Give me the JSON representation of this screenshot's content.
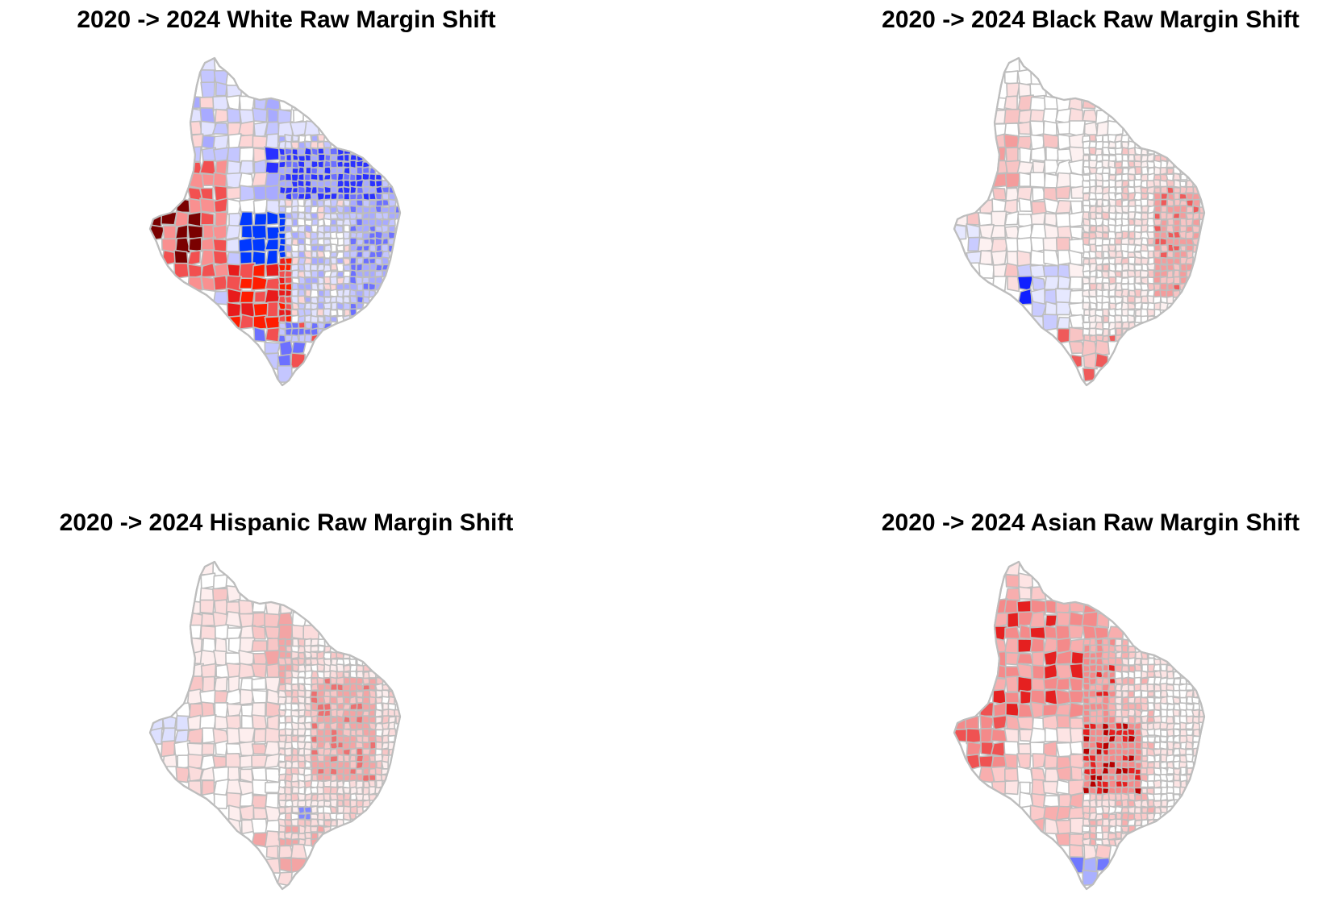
{
  "figure": {
    "panels": [
      {
        "id": "white",
        "title": "2020 -> 2024 White Raw Margin Shift",
        "fill_palette": [
          "#ffffff",
          "#e2e3ff",
          "#c4c6ff",
          "#a8aaff",
          "#6c70ff",
          "#2a31ff",
          "#0038ff",
          "#fdd6d6",
          "#f99090",
          "#f25050",
          "#e81b1b",
          "#ff1d00",
          "#7a0000"
        ]
      },
      {
        "id": "black",
        "title": "2020 -> 2024 Black Raw Margin Shift",
        "fill_palette": [
          "#ffffff",
          "#fdf1f1",
          "#fbdede",
          "#f8c4c4",
          "#f49c9c",
          "#ef5a5a",
          "#e6e8ff",
          "#c9cbff",
          "#7b80ff",
          "#1020ff"
        ]
      },
      {
        "id": "hispanic",
        "title": "2020 -> 2024 Hispanic Raw Margin Shift",
        "fill_palette": [
          "#ffffff",
          "#fdeeee",
          "#fbdcdc",
          "#f8c6c6",
          "#f3a4a4",
          "#ec7070",
          "#dde0ff",
          "#8088ff"
        ]
      },
      {
        "id": "asian",
        "title": "2020 -> 2024 Asian Raw Margin Shift",
        "fill_palette": [
          "#ffffff",
          "#fde4e4",
          "#fbcaca",
          "#f8aeae",
          "#f48a8a",
          "#ef5252",
          "#e52020",
          "#b80000",
          "#aab0ff",
          "#7078ff"
        ]
      }
    ]
  }
}
